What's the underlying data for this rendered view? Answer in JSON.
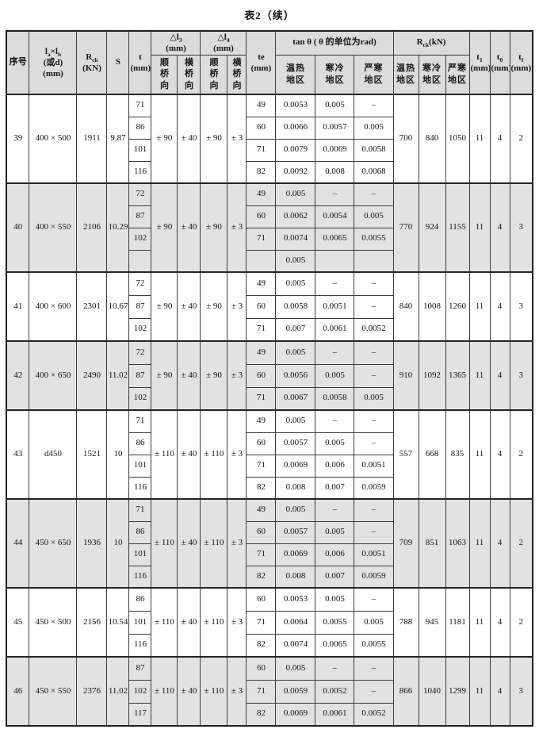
{
  "title": "表2（续）",
  "header": {
    "serial": "序号",
    "size_l": "l",
    "size_sub_a": "a",
    "size_x": "×l",
    "size_sub_b": "b",
    "size_line2": "(或d)",
    "size_line3": "(mm)",
    "rck_r": "R",
    "rck_sub": "ck",
    "rck_unit": "(KN)",
    "s": "S",
    "t": "t",
    "t_unit": "(mm)",
    "dl3": "△l",
    "dl3_sub": "3",
    "dl3_unit": "(mm)",
    "dl4": "△l",
    "dl4_sub": "4",
    "dl4_unit": "(mm)",
    "along_bridge": "顺桥向",
    "across_bridge": "横桥向",
    "te": "te",
    "te_unit": "(mm)",
    "tan_title": "tan θ ( θ 的单位为rad)",
    "warm_region": "温热地区",
    "cold_region": "寒冷地区",
    "severe_region": "严寒地区",
    "rck2_r": "R",
    "rck2_sub": "ck",
    "rck2_unit": "(kN)",
    "t1": "t",
    "t1_sub": "1",
    "t1_unit": "(mm)",
    "t0": "t",
    "t0_sub": "0",
    "t0_unit": "(mm)",
    "tf": "t",
    "tf_sub": "f",
    "tf_unit": "(mm)"
  },
  "rows": [
    {
      "no": "39",
      "size": "400 × 500",
      "rck": "1911",
      "s": "9.87",
      "dl3_along": "± 90",
      "dl3_across": "± 40",
      "dl4_along": "± 90",
      "dl4_across": "± 3",
      "t": [
        "71",
        "86",
        "101",
        "116"
      ],
      "te": [
        "49",
        "60",
        "71",
        "82"
      ],
      "tan": [
        [
          "0.0053",
          "0.005",
          "–"
        ],
        [
          "0.0066",
          "0.0057",
          "0.005"
        ],
        [
          "0.0079",
          "0.0069",
          "0.0058"
        ],
        [
          "0.0092",
          "0.008",
          "0.0068"
        ]
      ],
      "r": [
        "700",
        "840",
        "1050"
      ],
      "t1": "11",
      "t0": "4",
      "tf": "2"
    },
    {
      "no": "40",
      "size": "400 × 550",
      "rck": "2106",
      "s": "10.29",
      "dl3_along": "± 90",
      "dl3_across": "± 40",
      "dl4_along": "± 90",
      "dl4_across": "± 3",
      "t": [
        "72",
        "87",
        "102",
        ""
      ],
      "te": [
        "49",
        "60",
        "71",
        ""
      ],
      "tan": [
        [
          "0.005",
          "–",
          "–"
        ],
        [
          "0.0062",
          "0.0054",
          "0.005"
        ],
        [
          "0.0074",
          "0.0065",
          "0.0055"
        ],
        [
          "0.005",
          "",
          ""
        ]
      ],
      "r": [
        "770",
        "924",
        "1155"
      ],
      "t1": "11",
      "t0": "4",
      "tf": "3"
    },
    {
      "no": "41",
      "size": "400 × 600",
      "rck": "2301",
      "s": "10.67",
      "dl3_along": "± 90",
      "dl3_across": "± 40",
      "dl4_along": "± 90",
      "dl4_across": "± 3",
      "t": [
        "72",
        "87",
        "102"
      ],
      "te": [
        "49",
        "60",
        "71"
      ],
      "tan": [
        [
          "0.005",
          "–",
          "–"
        ],
        [
          "0.0058",
          "0.0051",
          "–"
        ],
        [
          "0.007",
          "0.0061",
          "0.0052"
        ]
      ],
      "r": [
        "840",
        "1008",
        "1260"
      ],
      "t1": "11",
      "t0": "4",
      "tf": "3"
    },
    {
      "no": "42",
      "size": "400 × 650",
      "rck": "2490",
      "s": "11.02",
      "dl3_along": "± 90",
      "dl3_across": "± 40",
      "dl4_along": "± 90",
      "dl4_across": "± 3",
      "t": [
        "72",
        "87",
        "102"
      ],
      "te": [
        "49",
        "60",
        "71"
      ],
      "tan": [
        [
          "0.005",
          "–",
          "–"
        ],
        [
          "0.0056",
          "0.005",
          "–"
        ],
        [
          "0.0067",
          "0.0058",
          "0.005"
        ]
      ],
      "r": [
        "910",
        "1092",
        "1365"
      ],
      "t1": "11",
      "t0": "4",
      "tf": "3"
    },
    {
      "no": "43",
      "size": "d450",
      "rck": "1521",
      "s": "10",
      "dl3_along": "± 110",
      "dl3_across": "± 40",
      "dl4_along": "± 110",
      "dl4_across": "± 3",
      "t": [
        "71",
        "86",
        "101",
        "116"
      ],
      "te": [
        "49",
        "60",
        "71",
        "82"
      ],
      "tan": [
        [
          "0.005",
          "–",
          "–"
        ],
        [
          "0.0057",
          "0.005",
          "–"
        ],
        [
          "0.0069",
          "0.006",
          "0.0051"
        ],
        [
          "0.008",
          "0.007",
          "0.0059"
        ]
      ],
      "r": [
        "557",
        "668",
        "835"
      ],
      "t1": "11",
      "t0": "4",
      "tf": "2"
    },
    {
      "no": "44",
      "size": "450 × 650",
      "rck": "1936",
      "s": "10",
      "dl3_along": "± 110",
      "dl3_across": "± 40",
      "dl4_along": "± 110",
      "dl4_across": "± 3",
      "t": [
        "71",
        "86",
        "101",
        "116"
      ],
      "te": [
        "49",
        "60",
        "71",
        "82"
      ],
      "tan": [
        [
          "0.005",
          "–",
          "–"
        ],
        [
          "0.0057",
          "0.005",
          "–"
        ],
        [
          "0.0069",
          "0.006",
          "0.0051"
        ],
        [
          "0.008",
          "0.007",
          "0.0059"
        ]
      ],
      "r": [
        "709",
        "851",
        "1063"
      ],
      "t1": "11",
      "t0": "4",
      "tf": "2"
    },
    {
      "no": "45",
      "size": "450 × 500",
      "rck": "2156",
      "s": "10.54",
      "dl3_along": "± 110",
      "dl3_across": "± 40",
      "dl4_along": "± 110",
      "dl4_across": "± 3",
      "t": [
        "86",
        "101",
        "116"
      ],
      "te": [
        "60",
        "71",
        "82"
      ],
      "tan": [
        [
          "0.0053",
          "0.005",
          "–"
        ],
        [
          "0.0064",
          "0.0055",
          "0.005"
        ],
        [
          "0.0074",
          "0.0065",
          "0.0055"
        ]
      ],
      "r": [
        "788",
        "945",
        "1181"
      ],
      "t1": "11",
      "t0": "4",
      "tf": "2"
    },
    {
      "no": "46",
      "size": "450 × 550",
      "rck": "2376",
      "s": "11.02",
      "dl3_along": "± 110",
      "dl3_across": "± 40",
      "dl4_along": "± 110",
      "dl4_across": "± 3",
      "t": [
        "87",
        "102",
        "117"
      ],
      "te": [
        "60",
        "71",
        "82"
      ],
      "tan": [
        [
          "0.005",
          "–",
          "–"
        ],
        [
          "0.0059",
          "0.0052",
          "–"
        ],
        [
          "0.0069",
          "0.0061",
          "0.0052"
        ]
      ],
      "r": [
        "866",
        "1040",
        "1299"
      ],
      "t1": "11",
      "t0": "4",
      "tf": "3"
    }
  ]
}
